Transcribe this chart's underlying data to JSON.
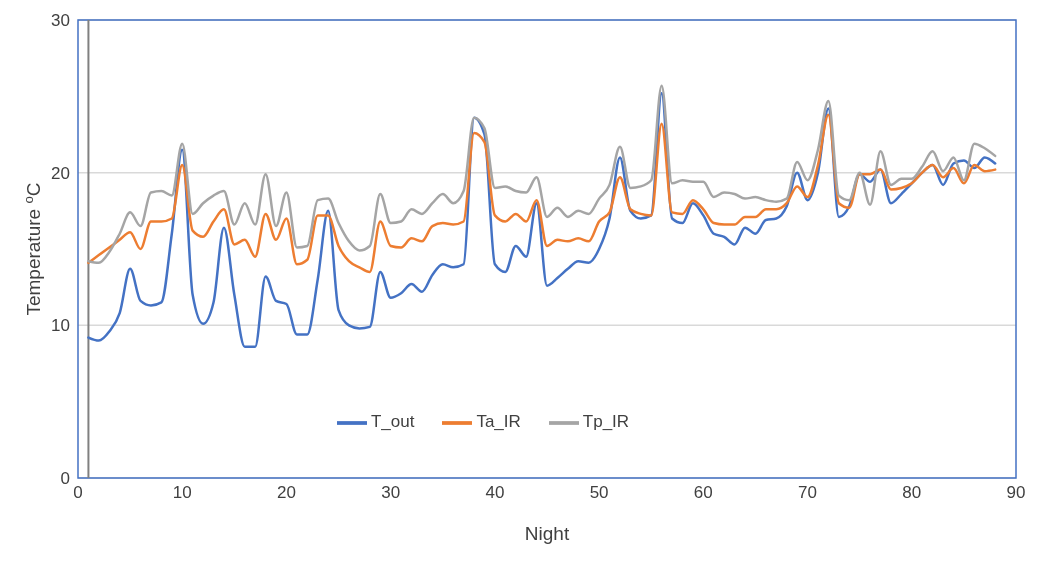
{
  "chart_data": {
    "type": "line",
    "xlabel": "Night",
    "ylabel": "Temperature $^{o}$C",
    "x": [
      1,
      2,
      3,
      4,
      5,
      6,
      7,
      8,
      9,
      10,
      11,
      12,
      13,
      14,
      15,
      16,
      17,
      18,
      19,
      20,
      21,
      22,
      23,
      24,
      25,
      26,
      27,
      28,
      29,
      30,
      31,
      32,
      33,
      34,
      35,
      36,
      37,
      38,
      39,
      40,
      41,
      42,
      43,
      44,
      45,
      46,
      47,
      48,
      49,
      50,
      51,
      52,
      53,
      54,
      55,
      56,
      57,
      58,
      59,
      60,
      61,
      62,
      63,
      64,
      65,
      66,
      67,
      68,
      69,
      70,
      71,
      72,
      73,
      74,
      75,
      76,
      77,
      78,
      79,
      80,
      81,
      82,
      83,
      84,
      85,
      86,
      87,
      88
    ],
    "series": [
      {
        "name": "T_out",
        "color": "#4472c4",
        "values": [
          9.2,
          9.0,
          9.6,
          10.8,
          13.7,
          11.6,
          11.3,
          11.5,
          16,
          21.5,
          12,
          10.1,
          11.5,
          16.4,
          12,
          8.6,
          8.6,
          13.2,
          11.6,
          11.4,
          9.4,
          9.4,
          13,
          17.5,
          11,
          10,
          9.8,
          9.9,
          13.5,
          11.8,
          12.1,
          12.7,
          12.2,
          13.3,
          14,
          13.8,
          14,
          23.6,
          22.5,
          14,
          13.5,
          15.2,
          14.5,
          18,
          12.6,
          13.1,
          13.7,
          14.2,
          14.1,
          15,
          17,
          21,
          17.5,
          17,
          17.2,
          25.2,
          17,
          16.7,
          18,
          17.2,
          16,
          15.8,
          15.3,
          16.4,
          16,
          16.9,
          17,
          17.8,
          20,
          18.2,
          20,
          24.2,
          17.1,
          17.8,
          19.9,
          19.4,
          20.2,
          18,
          18.6,
          19.3,
          20,
          20.5,
          19.2,
          20.6,
          20.8,
          20.3,
          21,
          20.6
        ]
      },
      {
        "name": "Ta_IR",
        "color": "#ed7d31",
        "values": [
          14.1,
          14.6,
          15.1,
          15.6,
          16.1,
          15,
          16.8,
          16.8,
          17,
          20.5,
          16.2,
          15.8,
          16.8,
          17.6,
          15.3,
          15.6,
          14.5,
          17.3,
          15.6,
          17,
          14,
          14.3,
          17.2,
          17.2,
          15.2,
          14.2,
          13.8,
          13.5,
          16.8,
          15.2,
          15.1,
          15.7,
          15.5,
          16.5,
          16.7,
          16.6,
          16.8,
          22.6,
          22,
          17.2,
          16.8,
          17.3,
          16.8,
          18.2,
          15.2,
          15.6,
          15.5,
          15.7,
          15.5,
          16.8,
          17.4,
          19.7,
          17.6,
          17.3,
          17.2,
          23.2,
          17.4,
          17.3,
          18.2,
          17.6,
          16.7,
          16.6,
          16.6,
          17.1,
          17.1,
          17.6,
          17.6,
          18,
          19.1,
          18.4,
          20.5,
          23.8,
          18,
          17.7,
          19.9,
          19.9,
          20.2,
          18.9,
          19,
          19.3,
          20,
          20.5,
          19.7,
          20.3,
          19.3,
          20.5,
          20.1,
          20.2
        ]
      },
      {
        "name": "Tp_IR",
        "color": "#a5a5a5",
        "values": [
          14.2,
          14.1,
          14.8,
          16,
          17.4,
          16.5,
          18.7,
          18.8,
          18.5,
          21.9,
          17.3,
          18,
          18.5,
          18.8,
          16.6,
          18,
          16.6,
          19.9,
          16.5,
          18.7,
          15.1,
          15.2,
          18.2,
          18.3,
          16.7,
          15.5,
          14.9,
          15.2,
          18.6,
          16.7,
          16.8,
          17.6,
          17.3,
          18,
          18.6,
          18,
          18.8,
          23.6,
          22.9,
          19,
          19.1,
          18.8,
          18.7,
          19.7,
          17.1,
          17.7,
          17.1,
          17.5,
          17.3,
          18.3,
          19.2,
          21.7,
          19,
          19.1,
          19.5,
          25.7,
          19.3,
          19.5,
          19.4,
          19.4,
          18.4,
          18.7,
          18.6,
          18.3,
          18.4,
          18.2,
          18.1,
          18.3,
          20.7,
          19.5,
          21.5,
          24.7,
          18.5,
          18.2,
          20,
          17.9,
          21.4,
          19.2,
          19.6,
          19.6,
          20.4,
          21.4,
          20.1,
          21,
          19.5,
          21.9,
          21.6,
          21.1
        ]
      }
    ],
    "xlim": [
      0,
      90
    ],
    "xticks": [
      0,
      10,
      20,
      30,
      40,
      50,
      60,
      70,
      80,
      90
    ],
    "ylim": [
      0,
      30
    ],
    "yticks": [
      0,
      10,
      20,
      30
    ],
    "grid": "y",
    "legend": "bottom",
    "marker": "none",
    "line_style": "solid",
    "ref_lines": [
      {
        "axis": "x",
        "value": 1,
        "color": "#808080"
      }
    ]
  }
}
